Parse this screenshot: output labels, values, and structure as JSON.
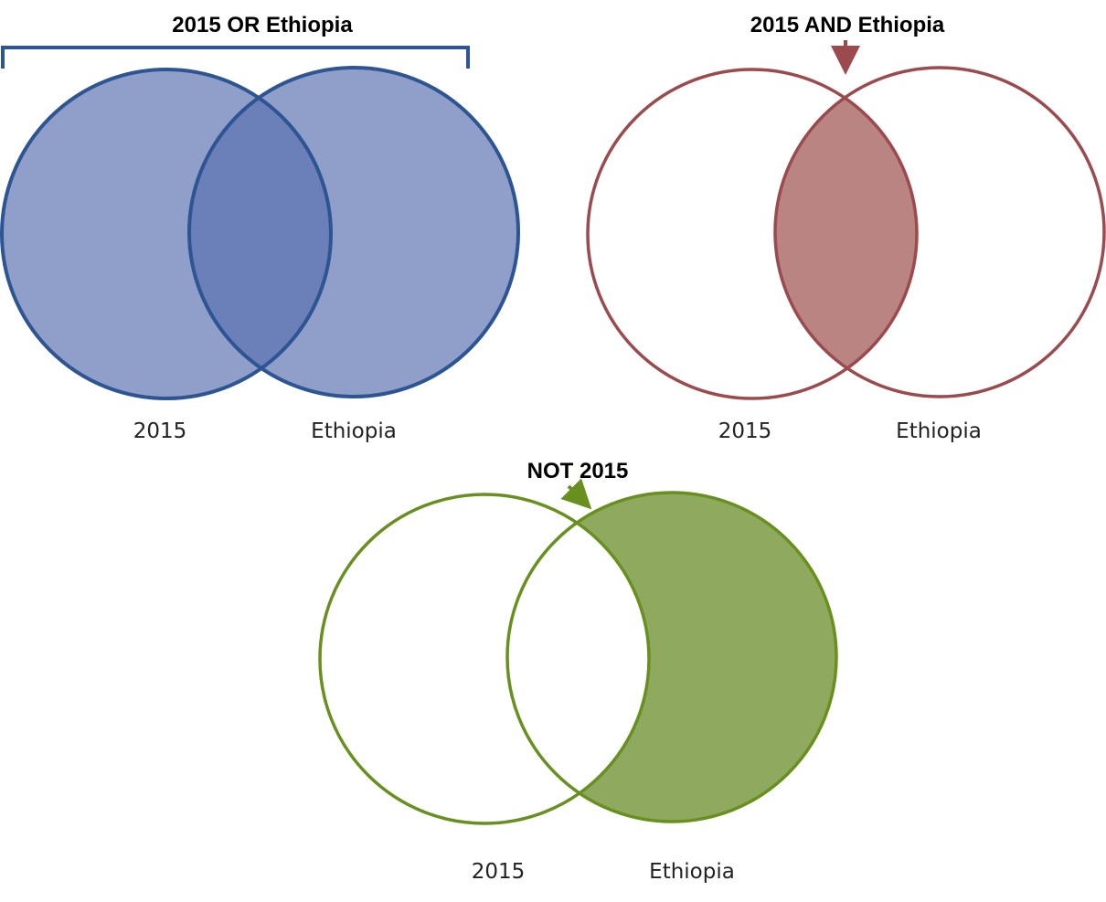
{
  "colors": {
    "or": {
      "stroke": "#2e5593",
      "fill": "#8f9fca",
      "overlap": "#6b7fb8"
    },
    "and": {
      "stroke": "#9b4a4e",
      "fill": "#b98482"
    },
    "not": {
      "stroke": "#67901f",
      "fill": "#8faa5f"
    }
  },
  "diagrams": {
    "or": {
      "title": "2015 OR Ethiopia",
      "left_label": "2015",
      "right_label": "Ethiopia",
      "indicator": "bracket-icon"
    },
    "and": {
      "title": "2015 AND Ethiopia",
      "left_label": "2015",
      "right_label": "Ethiopia",
      "indicator": "arrow-down-icon"
    },
    "not": {
      "title": "NOT 2015",
      "left_label": "2015",
      "right_label": "Ethiopia",
      "indicator": "arrow-diagonal-icon"
    }
  }
}
